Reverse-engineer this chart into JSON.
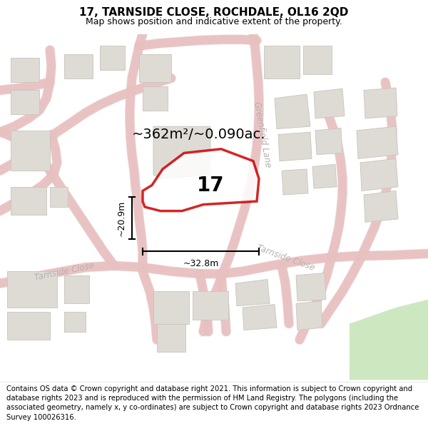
{
  "title": "17, TARNSIDE CLOSE, ROCHDALE, OL16 2QD",
  "subtitle": "Map shows position and indicative extent of the property.",
  "area_text": "~362m²/~0.090ac.",
  "dim_width": "~32.8m",
  "dim_height": "~20.9m",
  "property_label": "17",
  "footer": "Contains OS data © Crown copyright and database right 2021. This information is subject to Crown copyright and database rights 2023 and is reproduced with the permission of HM Land Registry. The polygons (including the associated geometry, namely x, y co-ordinates) are subject to Crown copyright and database rights 2023 Ordnance Survey 100026316.",
  "bg_color": "#f5f2ef",
  "road_color": "#e8c0c0",
  "road_outline_color": "#d4a8a8",
  "building_color": "#dedbd5",
  "building_edge_color": "#c8c4bc",
  "green_color": "#cde8c0",
  "property_poly_color": "#cc0000",
  "dim_line_color": "#000000",
  "road_label_color": "#b8b0b0",
  "title_fontsize": 11,
  "subtitle_fontsize": 9,
  "area_fontsize": 14,
  "label_fontsize": 20,
  "footer_fontsize": 7.2,
  "road_label_fontsize": 8.5
}
